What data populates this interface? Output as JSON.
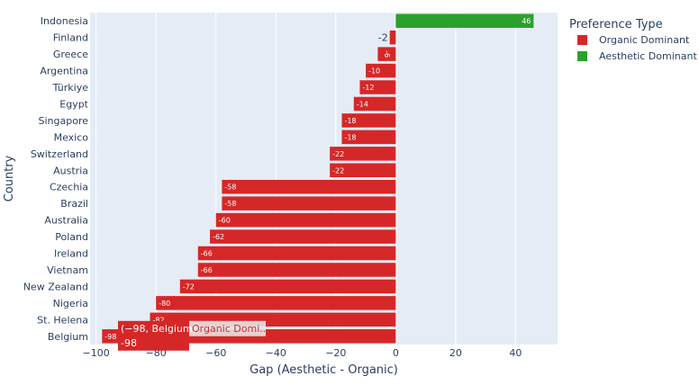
{
  "chart_data": {
    "type": "bar",
    "orientation": "horizontal",
    "xlabel": "Gap (Aesthetic - Organic)",
    "ylabel": "Country",
    "xlim": [
      -102,
      54
    ],
    "xticks": [
      -100,
      -80,
      -60,
      -40,
      -20,
      0,
      20,
      40
    ],
    "xtick_labels": [
      "−100",
      "−80",
      "−60",
      "−40",
      "−20",
      "0",
      "20",
      "40"
    ],
    "grid": true,
    "legend": {
      "title": "Preference Type",
      "position": "top-right",
      "entries": [
        {
          "name": "Organic Dominant",
          "color": "#d62728"
        },
        {
          "name": "Aesthetic Dominant",
          "color": "#2ca02c"
        }
      ]
    },
    "categories": [
      "Indonesia",
      "Finland",
      "Greece",
      "Argentina",
      "Türkiye",
      "Egypt",
      "Singapore",
      "Mexico",
      "Switzerland",
      "Austria",
      "Czechia",
      "Brazil",
      "Australia",
      "Poland",
      "Ireland",
      "Vietnam",
      "New Zealand",
      "Nigeria",
      "St. Helena",
      "Belgium"
    ],
    "values": [
      46,
      -2,
      -6,
      -10,
      -12,
      -14,
      -18,
      -18,
      -22,
      -22,
      -58,
      -58,
      -60,
      -62,
      -66,
      -66,
      -72,
      -80,
      -82,
      -98
    ],
    "series_type": [
      "Aesthetic Dominant",
      "Organic Dominant",
      "Organic Dominant",
      "Organic Dominant",
      "Organic Dominant",
      "Organic Dominant",
      "Organic Dominant",
      "Organic Dominant",
      "Organic Dominant",
      "Organic Dominant",
      "Organic Dominant",
      "Organic Dominant",
      "Organic Dominant",
      "Organic Dominant",
      "Organic Dominant",
      "Organic Dominant",
      "Organic Dominant",
      "Organic Dominant",
      "Organic Dominant",
      "Organic Dominant"
    ],
    "labels": [
      "46",
      "-2",
      "-6",
      "-10",
      "-12",
      "-14",
      "-18",
      "-18",
      "-22",
      "-22",
      "-58",
      "-58",
      "-60",
      "-62",
      "-66",
      "-66",
      "-72",
      "-80",
      "-82",
      "-98"
    ]
  },
  "hover": {
    "line1": "(−98, Belgium)",
    "series": "Organic Domi...",
    "value": "-98"
  },
  "colors": {
    "background": "#e5ecf6",
    "grid": "#ffffff",
    "organic": "#d62728",
    "aesthetic": "#2ca02c"
  }
}
